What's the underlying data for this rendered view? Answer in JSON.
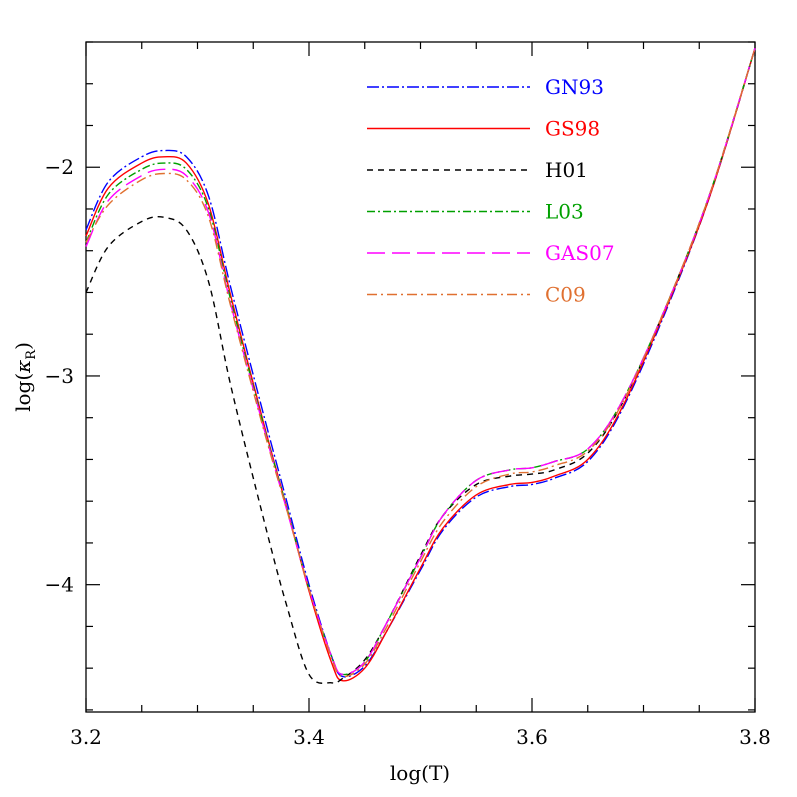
{
  "chart_data": {
    "type": "line",
    "xlabel": "log(T)",
    "ylabel": "log(κ_R)",
    "ylabel_parts": {
      "main": "log(",
      "kappa": "κ",
      "sub": "R",
      "close": ")"
    },
    "xlim": [
      3.2,
      3.8
    ],
    "ylim": [
      -4.61,
      -1.4
    ],
    "xticks": [
      3.2,
      3.4,
      3.6,
      3.8
    ],
    "xtick_labels": [
      "3.2",
      "3.4",
      "3.6",
      "3.8"
    ],
    "yticks": [
      -2,
      -3,
      -4
    ],
    "ytick_labels": [
      "−2",
      "−3",
      "−4"
    ],
    "grid": false,
    "legend_placement": "top-center",
    "x": [
      3.2,
      3.22,
      3.25,
      3.27,
      3.29,
      3.31,
      3.33,
      3.36,
      3.38,
      3.4,
      3.42,
      3.43,
      3.45,
      3.47,
      3.5,
      3.52,
      3.55,
      3.58,
      3.6,
      3.62,
      3.65,
      3.68,
      3.72,
      3.76,
      3.8
    ],
    "series": [
      {
        "name": "GN93",
        "color": "#0000ff",
        "dash": "12,3,2,3",
        "values": [
          -2.3,
          -2.07,
          -1.95,
          -1.92,
          -1.95,
          -2.14,
          -2.58,
          -3.2,
          -3.6,
          -4.0,
          -4.34,
          -4.44,
          -4.39,
          -4.22,
          -3.93,
          -3.74,
          -3.58,
          -3.53,
          -3.52,
          -3.49,
          -3.41,
          -3.17,
          -2.69,
          -2.13,
          -1.43
        ]
      },
      {
        "name": "GS98",
        "color": "#ff0000",
        "dash": "",
        "values": [
          -2.33,
          -2.1,
          -1.98,
          -1.95,
          -1.98,
          -2.18,
          -2.62,
          -3.24,
          -3.63,
          -4.03,
          -4.37,
          -4.46,
          -4.4,
          -4.22,
          -3.92,
          -3.73,
          -3.57,
          -3.52,
          -3.51,
          -3.48,
          -3.4,
          -3.16,
          -2.68,
          -2.13,
          -1.43
        ]
      },
      {
        "name": "H01",
        "color": "#000000",
        "dash": "6,5",
        "values": [
          -2.6,
          -2.38,
          -2.26,
          -2.24,
          -2.3,
          -2.55,
          -3.05,
          -3.7,
          -4.1,
          -4.43,
          -4.47,
          -4.45,
          -4.36,
          -4.18,
          -3.86,
          -3.67,
          -3.52,
          -3.48,
          -3.47,
          -3.45,
          -3.37,
          -3.14,
          -2.67,
          -2.12,
          -1.43
        ]
      },
      {
        "name": "L03",
        "color": "#00a000",
        "dash": "8,3,2,3",
        "values": [
          -2.36,
          -2.13,
          -2.01,
          -1.98,
          -2.01,
          -2.2,
          -2.64,
          -3.25,
          -3.63,
          -4.02,
          -4.34,
          -4.43,
          -4.37,
          -4.18,
          -3.87,
          -3.67,
          -3.5,
          -3.45,
          -3.44,
          -3.41,
          -3.35,
          -3.13,
          -2.67,
          -2.12,
          -1.43
        ]
      },
      {
        "name": "GAS07",
        "color": "#ff00ff",
        "dash": "18,7",
        "values": [
          -2.38,
          -2.16,
          -2.04,
          -2.01,
          -2.04,
          -2.22,
          -2.66,
          -3.26,
          -3.64,
          -4.02,
          -4.34,
          -4.43,
          -4.37,
          -4.18,
          -3.87,
          -3.67,
          -3.5,
          -3.45,
          -3.44,
          -3.41,
          -3.35,
          -3.13,
          -2.67,
          -2.12,
          -1.43
        ]
      },
      {
        "name": "C09",
        "color": "#e07030",
        "dash": "10,4,2,4",
        "values": [
          -2.36,
          -2.18,
          -2.06,
          -2.03,
          -2.06,
          -2.24,
          -2.67,
          -3.27,
          -3.64,
          -4.02,
          -4.35,
          -4.44,
          -4.38,
          -4.2,
          -3.89,
          -3.7,
          -3.53,
          -3.47,
          -3.46,
          -3.43,
          -3.36,
          -3.14,
          -2.67,
          -2.12,
          -1.43
        ]
      }
    ]
  }
}
